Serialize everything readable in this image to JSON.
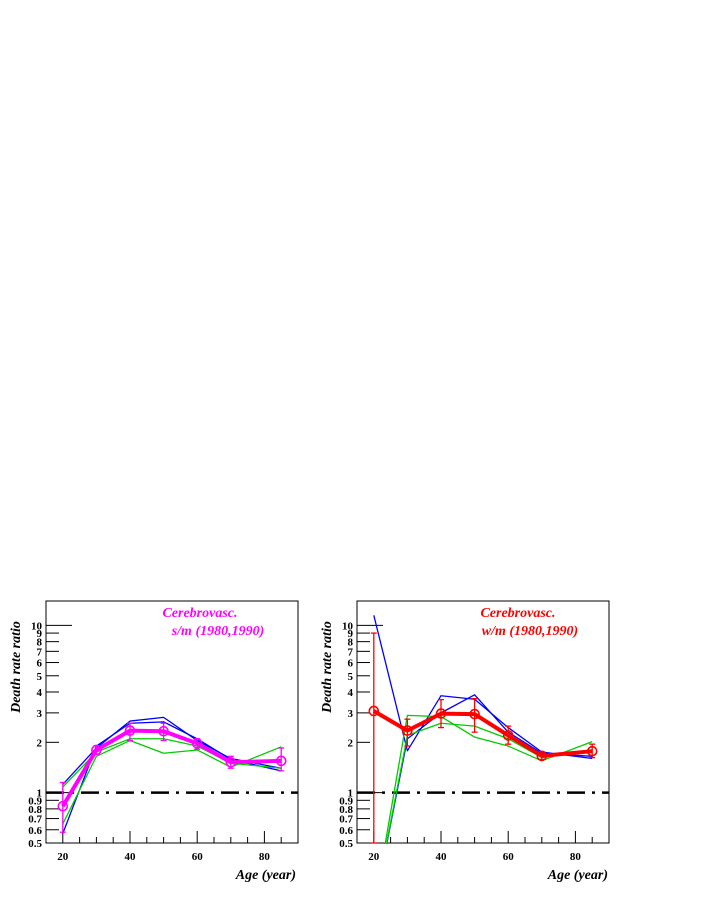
{
  "chart_data": [
    {
      "type": "line",
      "title": "Cerebrovasc.",
      "subtitle": "s/m (1980,1990)",
      "title_color": "#ff00ff",
      "xlabel": "Age (year)",
      "ylabel": "Death rate ratio",
      "xlim": [
        15,
        90
      ],
      "ylim": [
        0.5,
        14
      ],
      "yscale": "log",
      "xticks": [
        20,
        40,
        60,
        80
      ],
      "yticks": [
        0.5,
        0.6,
        0.7,
        0.8,
        0.9,
        1,
        2,
        3,
        4,
        5,
        6,
        7,
        8,
        9,
        10
      ],
      "reference_line": {
        "y": 1,
        "style": "dash-dot",
        "color": "#000000"
      },
      "x": [
        20,
        30,
        40,
        50,
        60,
        70,
        85
      ],
      "series": [
        {
          "color": "#ff00ff",
          "width": 4,
          "marker": "circle",
          "values": [
            0.83,
            1.8,
            2.35,
            2.33,
            1.97,
            1.52,
            1.55
          ],
          "err_low": [
            0.58,
            1.7,
            2.05,
            2.05,
            1.82,
            1.4,
            1.35
          ],
          "err_high": [
            1.15,
            1.9,
            2.6,
            2.6,
            2.1,
            1.65,
            1.85
          ]
        },
        {
          "color": "#0000ff",
          "width": 1.3,
          "values": [
            0.57,
            1.9,
            2.6,
            2.65,
            2.1,
            1.58,
            1.35
          ]
        },
        {
          "color": "#0000ff",
          "width": 1.3,
          "values": [
            1.12,
            1.85,
            2.68,
            2.82,
            2.05,
            1.6,
            1.4
          ]
        },
        {
          "color": "#00cc00",
          "width": 1.3,
          "values": [
            0.65,
            1.65,
            2.05,
            1.72,
            1.8,
            1.42,
            1.88
          ]
        },
        {
          "color": "#00cc00",
          "width": 1.3,
          "values": [
            1.08,
            1.75,
            2.1,
            2.1,
            1.9,
            1.5,
            1.4
          ]
        }
      ]
    },
    {
      "type": "line",
      "title": "Cerebrovasc.",
      "subtitle": "w/m (1980,1990)",
      "title_color": "#ff0000",
      "xlabel": "Age (year)",
      "ylabel": "Death rate ratio",
      "xlim": [
        15,
        90
      ],
      "ylim": [
        0.5,
        14
      ],
      "yscale": "log",
      "xticks": [
        20,
        40,
        60,
        80
      ],
      "yticks": [
        0.5,
        0.6,
        0.7,
        0.8,
        0.9,
        1,
        2,
        3,
        4,
        5,
        6,
        7,
        8,
        9,
        10
      ],
      "reference_line": {
        "y": 1,
        "style": "dash-dot",
        "color": "#000000"
      },
      "x": [
        20,
        30,
        40,
        50,
        60,
        70,
        85
      ],
      "series": [
        {
          "color": "#ff0000",
          "width": 4,
          "marker": "circle",
          "values": [
            3.08,
            2.35,
            2.97,
            2.95,
            2.2,
            1.66,
            1.77
          ],
          "err_low": [
            0.5,
            1.9,
            2.45,
            2.3,
            1.95,
            1.58,
            1.62
          ],
          "err_high": [
            9.0,
            2.75,
            3.6,
            3.65,
            2.5,
            1.75,
            1.95
          ]
        },
        {
          "color": "#0000ff",
          "width": 1.3,
          "values": [
            11.5,
            1.78,
            3.8,
            3.62,
            2.45,
            1.75,
            1.6
          ]
        },
        {
          "color": "#0000ff",
          "width": 1.3,
          "values": [
            0.2,
            2.1,
            3.0,
            3.85,
            2.3,
            1.72,
            1.65
          ]
        },
        {
          "color": "#00cc00",
          "width": 1.3,
          "values": [
            0.2,
            2.9,
            2.85,
            2.15,
            1.9,
            1.55,
            2.02
          ]
        },
        {
          "color": "#00cc00",
          "width": 1.3,
          "values": [
            0.2,
            2.2,
            2.6,
            2.5,
            2.1,
            1.62,
            1.8
          ]
        }
      ]
    }
  ]
}
